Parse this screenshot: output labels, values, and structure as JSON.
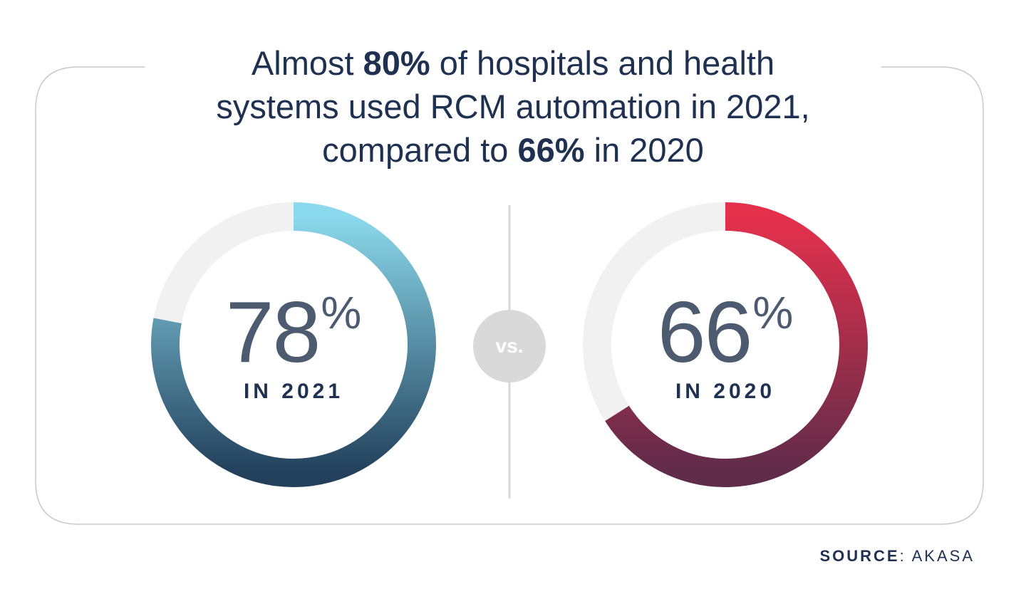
{
  "title": {
    "line1_pre": "Almost ",
    "line1_bold": "80%",
    "line1_post": " of hospitals and health",
    "line2": "systems used RCM automation in 2021,",
    "line3_pre": "compared to ",
    "line3_bold": "66%",
    "line3_post": " in 2020"
  },
  "vs_label": "vs.",
  "source": {
    "label": "SOURCE",
    "sep": ": ",
    "value": "AKASA"
  },
  "chart_data": [
    {
      "type": "donut",
      "value": 78,
      "value_text": "78",
      "unit": "%",
      "sublabel": "IN 2021",
      "colors": {
        "gradient_start": "#8bd9ec",
        "gradient_end": "#22405c",
        "track": "#f1f1f1"
      }
    },
    {
      "type": "donut",
      "value": 66,
      "value_text": "66",
      "unit": "%",
      "sublabel": "IN 2020",
      "colors": {
        "gradient_start": "#e5304c",
        "gradient_end": "#5f2c4a",
        "track": "#f1f1f1"
      }
    }
  ],
  "colors": {
    "text": "#1e3150",
    "number": "#4c5b70",
    "divider": "#d7d7d7",
    "vs_circle": "#d9d9d9"
  }
}
